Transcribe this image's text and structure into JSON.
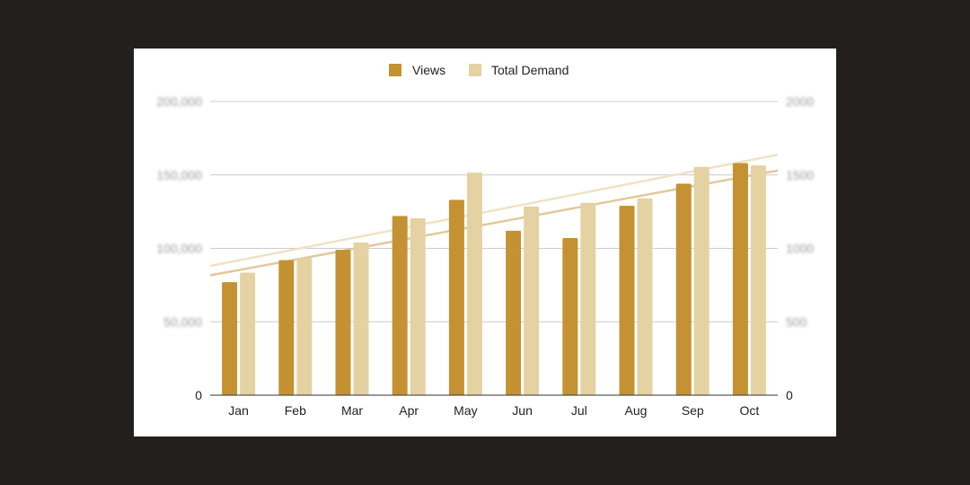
{
  "colors": {
    "background": "#231f1c",
    "card": "#ffffff",
    "views": "#c49232",
    "total_demand": "#e5d2a3",
    "views_trend": "#e2c89a",
    "total_demand_trend": "#f0e2c6",
    "grid": "#cccccc",
    "baseline": "#333333"
  },
  "chart_data": {
    "type": "bar",
    "categories": [
      "Jan",
      "Feb",
      "Mar",
      "Apr",
      "May",
      "Jun",
      "Jul",
      "Aug",
      "Sep",
      "Oct"
    ],
    "series": [
      {
        "name": "Views",
        "axis": "left",
        "values": [
          77000,
          92000,
          99000,
          122000,
          133000,
          112000,
          107000,
          129000,
          144000,
          158000
        ],
        "trendline": true
      },
      {
        "name": "Total Demand",
        "axis": "right",
        "values": [
          835,
          935,
          1040,
          1205,
          1515,
          1285,
          1310,
          1340,
          1555,
          1565
        ],
        "trendline": true
      }
    ],
    "left_axis": {
      "ylim": [
        0,
        200000
      ],
      "ticks": [
        "0",
        "50,000",
        "100,000",
        "150,000",
        "200,000"
      ],
      "tick_values": [
        0,
        50000,
        100000,
        150000,
        200000
      ],
      "blurred": true
    },
    "right_axis": {
      "ylim": [
        0,
        2000
      ],
      "ticks": [
        "0",
        "500",
        "1000",
        "1500",
        "2000"
      ],
      "tick_values": [
        0,
        500,
        1000,
        1500,
        2000
      ],
      "blurred": true
    },
    "title": "",
    "xlabel": "",
    "ylabel": "",
    "grid": true,
    "legend_position": "top"
  }
}
